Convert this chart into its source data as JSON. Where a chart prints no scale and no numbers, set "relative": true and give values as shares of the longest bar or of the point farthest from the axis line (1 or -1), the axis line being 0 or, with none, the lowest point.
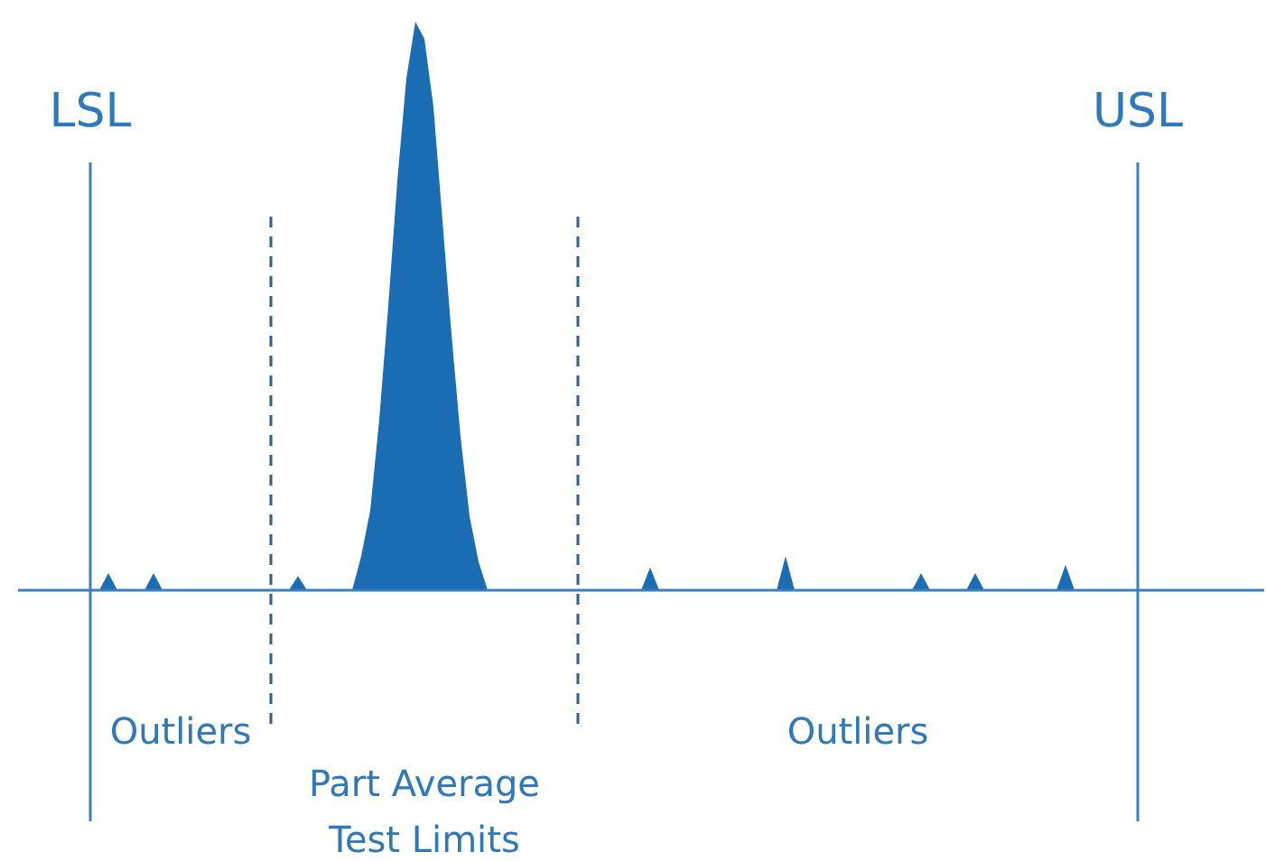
{
  "chart_data": {
    "type": "area",
    "relative": true,
    "categories": [
      null,
      null,
      null,
      null,
      null,
      null,
      null,
      null,
      null,
      null,
      null,
      null,
      null,
      null,
      null,
      null,
      null,
      null,
      null,
      null,
      null,
      null,
      null,
      null,
      null,
      null,
      null,
      null,
      null,
      null,
      null,
      null,
      null,
      null,
      null,
      null,
      null,
      null,
      null,
      null,
      null,
      null,
      null,
      null,
      null,
      null,
      null,
      null,
      null,
      null,
      null,
      null,
      null,
      null,
      null,
      null,
      null,
      null,
      null,
      null,
      null,
      null,
      null,
      null,
      null,
      null,
      null,
      null,
      null,
      null,
      null,
      null,
      null,
      null,
      null,
      null,
      null,
      null,
      null,
      null,
      null,
      null,
      null,
      null,
      null,
      null,
      null,
      null,
      null,
      null,
      null,
      null,
      null,
      null,
      null,
      null,
      null,
      null,
      null,
      null,
      null,
      null,
      null,
      null,
      null,
      null,
      null,
      null,
      null,
      null,
      null,
      null,
      null,
      null,
      null,
      null,
      null,
      null,
      null,
      null,
      null,
      null,
      null,
      null,
      null,
      null,
      null,
      null,
      null,
      null,
      null,
      null,
      null,
      null,
      null,
      null,
      null,
      null,
      null
    ],
    "series": [
      {
        "color": "#1a6db3",
        "values": [
          0,
          0,
          0,
          0,
          0,
          0,
          0,
          0,
          0,
          0,
          0.03,
          0,
          0,
          0,
          0,
          0.03,
          0,
          0,
          0,
          0,
          0,
          0,
          0,
          0,
          0,
          0,
          0,
          0,
          0,
          0,
          0,
          0.025,
          0,
          0,
          0,
          0,
          0,
          0,
          0.06,
          0.14,
          0.3,
          0.5,
          0.72,
          0.9,
          1,
          0.97,
          0.85,
          0.65,
          0.45,
          0.27,
          0.13,
          0.05,
          0,
          0,
          0,
          0,
          0,
          0,
          0,
          0,
          0,
          0,
          0,
          0,
          0,
          0,
          0,
          0,
          0,
          0,
          0.04,
          0,
          0,
          0,
          0,
          0,
          0,
          0,
          0,
          0,
          0,
          0,
          0,
          0,
          0,
          0.06,
          0,
          0,
          0,
          0,
          0,
          0,
          0,
          0,
          0,
          0,
          0,
          0,
          0,
          0,
          0.03,
          0,
          0,
          0,
          0,
          0,
          0.03,
          0,
          0,
          0,
          0,
          0,
          0,
          0,
          0,
          0,
          0.045,
          0,
          0,
          0,
          0,
          0,
          0,
          0,
          0,
          0,
          0,
          0,
          0,
          0,
          0,
          0,
          0,
          0,
          0,
          0,
          0,
          0,
          0
        ]
      }
    ],
    "annotations": [
      "LSL",
      "USL",
      "Outliers",
      "Part Average Test Limits",
      "Outliers"
    ]
  }
}
